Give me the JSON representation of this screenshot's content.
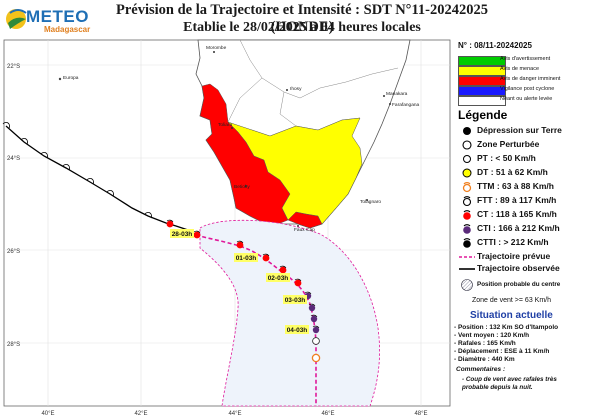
{
  "header": {
    "title_line1": "Prévision de la Trajectoire et Intensité : SDT N°11-20242025 (HONDE)",
    "title_line2": "Etablie le 28/02/2025 à 04 heures locales"
  },
  "logo": {
    "name": "METEO",
    "sub": "Madagascar"
  },
  "colors": {
    "sea": "#ffffff",
    "land": "#ffffff",
    "yellow": "#ffff00",
    "red": "#ff0000",
    "track_obs": "#000000",
    "track_forecast": "#e0189a",
    "cone_fill": "#eef3fb",
    "cone_stroke": "#e0189a",
    "grid": "#dddddd"
  },
  "map": {
    "lat_labels": [
      "22°S",
      "24°S",
      "26°S",
      "28°S"
    ],
    "lon_labels": [
      "40°E",
      "42°E",
      "44°E",
      "46°E",
      "48°E"
    ],
    "places": [
      "Morombe",
      "Europa",
      "Ihosy",
      "Manakara",
      "Farafangana",
      "Toliara",
      "Betioky",
      "Tolagnaro",
      "Faux Cap"
    ],
    "forecast_labels": [
      "28-03h",
      "01-03h",
      "02-03h",
      "03-03h",
      "04-03h"
    ]
  },
  "panel": {
    "bulletin_no": "N° : 08/11-20242025",
    "warnings": [
      {
        "color": "#00cc00",
        "label": "Avis d'avertissement"
      },
      {
        "color": "#ffff00",
        "label": "Avis de menace"
      },
      {
        "color": "#ff0000",
        "label": "Avis de danger imminent"
      },
      {
        "color": "#1a1aff",
        "label": "Vigilance post cyclone"
      },
      {
        "color": "#ffffff",
        "label": "Néant ou alerte levée"
      }
    ],
    "legend_title": "Légende",
    "legend_items": [
      {
        "icon": "black-dot-icon",
        "label": "Dépression sur Terre"
      },
      {
        "icon": "open-circle-icon",
        "label": "Zone Perturbée"
      },
      {
        "icon": "small-open-circle-icon",
        "label": "PT : < 50 Km/h"
      },
      {
        "icon": "yellow-circle-icon",
        "label": "DT : 51 à 62 Km/h"
      },
      {
        "icon": "orange-storm-icon",
        "label": "TTM : 63 à 88 Km/h"
      },
      {
        "icon": "open-storm-icon",
        "label": "FTT : 89 à 117 Km/h"
      },
      {
        "icon": "red-cyclone-icon",
        "label": "CT : 118 à 165 Km/h"
      },
      {
        "icon": "purple-cyclone-icon",
        "label": "CTI : 166 à 212 Km/h"
      },
      {
        "icon": "black-cyclone-icon",
        "label": "CTTI : > 212 Km/h"
      },
      {
        "icon": "dashed-pink-line-icon",
        "label": "Trajectoire prévue"
      },
      {
        "icon": "solid-black-line-icon",
        "label": "Trajectoire observée"
      },
      {
        "icon": "probable-position-icon",
        "label": "Position probable du centre"
      }
    ],
    "zone_label": "Zone de vent >= 63 Km/h",
    "situation_title": "Situation actuelle",
    "situation": [
      "- Position : 132 Km SO d'Itampolo",
      "- Vent moyen : 120 Km/h",
      "- Rafales : 165 Km/h",
      "- Déplacement : ESE à 11 Km/h",
      "- Diamètre : 440 Km"
    ],
    "comments_title": "Commentaires :",
    "comments": [
      "- Coup de vent avec rafales très",
      "probable depuis la nuit."
    ]
  }
}
